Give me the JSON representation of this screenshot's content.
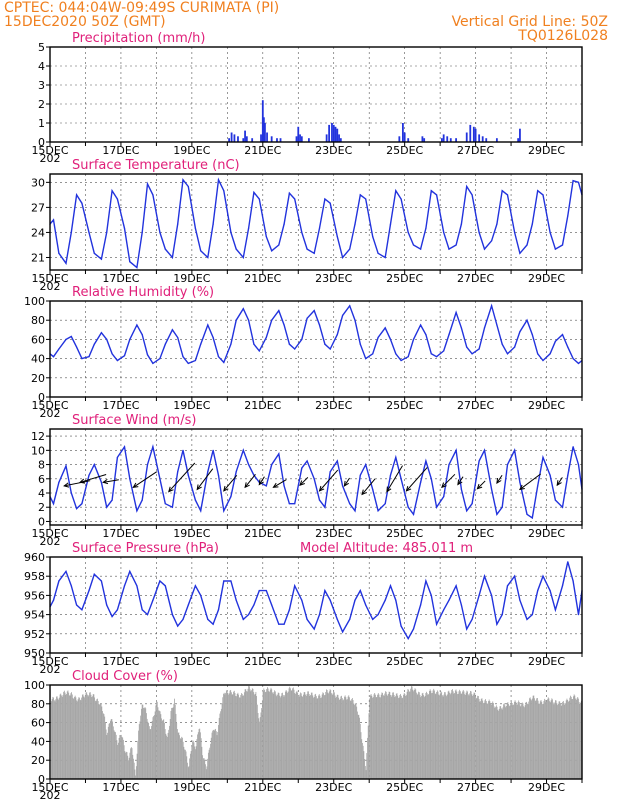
{
  "header": {
    "line1": "CPTEC:   044:04W-09:49S   CURIMATA (PI)",
    "line2": "15DEC2020 50Z (GMT)",
    "grid_note": "Vertical Grid Line: 50Z",
    "model_code": "TQ0126L028"
  },
  "colors": {
    "header": "#f08020",
    "title": "#e0207a",
    "line": "#2233dd",
    "cloud": "#a6a6a6"
  },
  "x_axis": {
    "labels": [
      "15DEC",
      "17DEC",
      "19DEC",
      "21DEC",
      "23DEC",
      "25DEC",
      "27DEC",
      "29DEC"
    ],
    "year_fragment": "202"
  },
  "chart_data": [
    {
      "id": "precip",
      "type": "bar",
      "title": "Precipitation (mm/h)",
      "ylim": [
        0,
        5
      ],
      "yticks": [
        0,
        1,
        2,
        3,
        4,
        5
      ],
      "xlim": [
        15,
        30
      ],
      "x": [
        20.05,
        20.12,
        20.2,
        20.3,
        20.45,
        20.5,
        20.55,
        20.7,
        20.95,
        21.0,
        21.03,
        21.06,
        21.12,
        21.25,
        21.4,
        21.5,
        21.95,
        22.0,
        22.05,
        22.1,
        22.3,
        22.8,
        22.87,
        22.95,
        23.0,
        23.05,
        23.1,
        23.15,
        23.2,
        24.85,
        24.95,
        25.0,
        25.1,
        25.5,
        25.55,
        26.05,
        26.1,
        26.2,
        26.3,
        26.45,
        26.75,
        26.85,
        26.95,
        27.0,
        27.1,
        27.2,
        27.3,
        27.6,
        28.2,
        28.25
      ],
      "values": [
        0.2,
        0.5,
        0.4,
        0.3,
        0.2,
        0.6,
        0.3,
        0.2,
        0.4,
        2.2,
        1.3,
        1.0,
        0.5,
        0.3,
        0.2,
        0.2,
        0.3,
        0.8,
        0.4,
        0.3,
        0.2,
        0.4,
        0.9,
        1.0,
        0.9,
        0.8,
        0.7,
        0.4,
        0.2,
        0.3,
        1.0,
        0.5,
        0.2,
        0.3,
        0.2,
        0.2,
        0.4,
        0.3,
        0.2,
        0.2,
        0.5,
        0.9,
        0.8,
        0.7,
        0.4,
        0.3,
        0.2,
        0.2,
        0.2,
        0.7
      ]
    },
    {
      "id": "temp",
      "type": "line",
      "title": "Surface Temperature (nC)",
      "ylim": [
        19.5,
        31
      ],
      "yticks": [
        21,
        24,
        27,
        30
      ],
      "xlim": [
        15,
        30
      ],
      "x": [
        15.0,
        15.1,
        15.25,
        15.45,
        15.6,
        15.75,
        15.9,
        16.1,
        16.25,
        16.45,
        16.6,
        16.75,
        16.9,
        17.1,
        17.25,
        17.45,
        17.6,
        17.75,
        17.9,
        18.1,
        18.25,
        18.45,
        18.6,
        18.75,
        18.9,
        19.1,
        19.25,
        19.45,
        19.6,
        19.75,
        19.9,
        20.1,
        20.25,
        20.45,
        20.6,
        20.75,
        20.9,
        21.1,
        21.25,
        21.45,
        21.6,
        21.75,
        21.9,
        22.1,
        22.25,
        22.45,
        22.6,
        22.75,
        22.9,
        23.1,
        23.25,
        23.45,
        23.6,
        23.75,
        23.9,
        24.1,
        24.25,
        24.45,
        24.6,
        24.75,
        24.9,
        25.1,
        25.25,
        25.45,
        25.6,
        25.75,
        25.9,
        26.1,
        26.25,
        26.45,
        26.6,
        26.75,
        26.9,
        27.1,
        27.25,
        27.45,
        27.6,
        27.75,
        27.9,
        28.1,
        28.25,
        28.45,
        28.6,
        28.75,
        28.9,
        29.1,
        29.25,
        29.45,
        29.6,
        29.75,
        29.9,
        30.0
      ],
      "values": [
        25.0,
        25.5,
        21.5,
        20.3,
        24.0,
        28.5,
        27.5,
        24.0,
        21.5,
        20.8,
        24.0,
        29.0,
        28.0,
        24.5,
        20.5,
        19.8,
        24.0,
        29.8,
        28.5,
        24.0,
        22.0,
        21.0,
        25.0,
        30.3,
        29.5,
        24.5,
        21.8,
        21.0,
        25.0,
        30.3,
        29.0,
        24.0,
        22.0,
        21.0,
        24.5,
        28.8,
        28.0,
        23.5,
        21.8,
        22.5,
        25.0,
        28.7,
        28.0,
        24.0,
        22.0,
        21.5,
        24.5,
        28.0,
        27.5,
        23.5,
        21.0,
        22.0,
        25.0,
        28.5,
        28.0,
        23.5,
        21.5,
        21.0,
        25.0,
        29.0,
        28.0,
        24.0,
        22.5,
        22.0,
        24.5,
        29.0,
        28.5,
        24.0,
        22.0,
        22.5,
        25.0,
        29.5,
        28.5,
        24.0,
        22.0,
        23.0,
        25.0,
        29.0,
        28.5,
        24.0,
        21.5,
        22.5,
        25.0,
        29.0,
        28.5,
        24.0,
        22.0,
        22.5,
        26.0,
        30.2,
        30.0,
        28.5
      ]
    },
    {
      "id": "rh",
      "type": "line",
      "title": "Relative Humidity (%)",
      "ylim": [
        0,
        100
      ],
      "yticks": [
        0,
        20,
        40,
        60,
        80,
        100
      ],
      "xlim": [
        15,
        30
      ],
      "x": [
        15.0,
        15.1,
        15.25,
        15.45,
        15.6,
        15.75,
        15.9,
        16.1,
        16.25,
        16.45,
        16.6,
        16.75,
        16.9,
        17.1,
        17.25,
        17.45,
        17.6,
        17.75,
        17.9,
        18.1,
        18.25,
        18.45,
        18.6,
        18.75,
        18.9,
        19.1,
        19.25,
        19.45,
        19.6,
        19.75,
        19.9,
        20.1,
        20.25,
        20.45,
        20.6,
        20.75,
        20.9,
        21.1,
        21.25,
        21.45,
        21.6,
        21.75,
        21.9,
        22.1,
        22.25,
        22.45,
        22.6,
        22.75,
        22.9,
        23.1,
        23.25,
        23.45,
        23.6,
        23.75,
        23.9,
        24.1,
        24.25,
        24.45,
        24.6,
        24.75,
        24.9,
        25.1,
        25.25,
        25.45,
        25.6,
        25.75,
        25.9,
        26.1,
        26.25,
        26.45,
        26.6,
        26.75,
        26.9,
        27.1,
        27.25,
        27.45,
        27.6,
        27.75,
        27.9,
        28.1,
        28.25,
        28.45,
        28.6,
        28.75,
        28.9,
        29.1,
        29.25,
        29.45,
        29.6,
        29.75,
        29.9,
        30.0
      ],
      "values": [
        45,
        42,
        50,
        60,
        63,
        52,
        40,
        42,
        55,
        67,
        60,
        45,
        38,
        43,
        60,
        75,
        65,
        44,
        35,
        40,
        55,
        70,
        62,
        42,
        35,
        38,
        55,
        75,
        62,
        42,
        36,
        55,
        80,
        92,
        80,
        55,
        48,
        62,
        80,
        90,
        75,
        55,
        50,
        60,
        82,
        90,
        75,
        55,
        50,
        65,
        85,
        95,
        80,
        55,
        40,
        45,
        62,
        72,
        60,
        45,
        38,
        42,
        60,
        75,
        65,
        45,
        42,
        48,
        65,
        88,
        72,
        52,
        45,
        50,
        72,
        95,
        75,
        55,
        45,
        52,
        68,
        80,
        65,
        45,
        38,
        45,
        58,
        65,
        52,
        40,
        35,
        38
      ]
    },
    {
      "id": "wind",
      "type": "line",
      "title": "Surface Wind (m/s)",
      "ylim": [
        -0.5,
        13
      ],
      "yticks": [
        0,
        2,
        4,
        6,
        8,
        10,
        12
      ],
      "xlim": [
        15,
        30
      ],
      "x": [
        15.0,
        15.1,
        15.25,
        15.45,
        15.6,
        15.75,
        15.9,
        16.1,
        16.25,
        16.45,
        16.6,
        16.75,
        16.9,
        17.1,
        17.25,
        17.45,
        17.6,
        17.75,
        17.9,
        18.1,
        18.25,
        18.45,
        18.6,
        18.75,
        18.9,
        19.1,
        19.25,
        19.45,
        19.6,
        19.75,
        19.9,
        20.1,
        20.25,
        20.45,
        20.6,
        20.75,
        20.9,
        21.1,
        21.25,
        21.45,
        21.6,
        21.75,
        21.9,
        22.1,
        22.25,
        22.45,
        22.6,
        22.75,
        22.9,
        23.1,
        23.25,
        23.45,
        23.6,
        23.75,
        23.9,
        24.1,
        24.25,
        24.45,
        24.6,
        24.75,
        24.9,
        25.1,
        25.25,
        25.45,
        25.6,
        25.75,
        25.9,
        26.1,
        26.25,
        26.45,
        26.6,
        26.75,
        26.9,
        27.1,
        27.25,
        27.45,
        27.6,
        27.75,
        27.9,
        28.1,
        28.25,
        28.45,
        28.6,
        28.75,
        28.9,
        29.1,
        29.25,
        29.45,
        29.6,
        29.75,
        29.9,
        30.0
      ],
      "values": [
        3.5,
        2.5,
        5.5,
        7.8,
        4.0,
        1.8,
        2.5,
        6.5,
        8.0,
        5.5,
        2.0,
        3.0,
        9.0,
        10.5,
        6.0,
        1.5,
        3.0,
        8.0,
        10.5,
        6.0,
        2.5,
        2.0,
        7.0,
        10.0,
        6.5,
        3.0,
        1.5,
        7.0,
        10.0,
        6.5,
        1.5,
        3.5,
        7.0,
        10.0,
        8.0,
        6.5,
        5.5,
        5.0,
        8.0,
        9.5,
        5.0,
        2.5,
        2.5,
        7.5,
        8.5,
        6.0,
        3.0,
        2.0,
        7.0,
        8.5,
        5.0,
        2.5,
        1.5,
        6.5,
        8.0,
        4.5,
        1.5,
        2.5,
        6.5,
        9.0,
        6.0,
        2.0,
        1.0,
        5.5,
        8.5,
        6.0,
        2.0,
        3.5,
        8.0,
        10.0,
        4.5,
        1.5,
        2.5,
        8.5,
        10.0,
        4.5,
        1.0,
        2.0,
        8.0,
        10.0,
        5.5,
        1.0,
        0.5,
        5.0,
        9.0,
        6.5,
        3.0,
        2.0,
        6.5,
        10.5,
        8.0,
        4.5
      ],
      "vectors": [
        {
          "x": 15.4,
          "y": 5.0,
          "u": 1.0,
          "v": 0.2
        },
        {
          "x": 15.85,
          "y": 5.5,
          "u": 1.0,
          "v": 0.3
        },
        {
          "x": 16.5,
          "y": 5.5,
          "u": 0.6,
          "v": 0.1
        },
        {
          "x": 17.35,
          "y": 4.8,
          "u": 0.9,
          "v": 0.6
        },
        {
          "x": 18.35,
          "y": 4.2,
          "u": 1.0,
          "v": 1.1
        },
        {
          "x": 19.15,
          "y": 4.5,
          "u": 0.6,
          "v": 0.8
        },
        {
          "x": 19.9,
          "y": 4.3,
          "u": 0.5,
          "v": 0.6
        },
        {
          "x": 20.5,
          "y": 4.8,
          "u": 0.4,
          "v": 0.5
        },
        {
          "x": 20.9,
          "y": 5.2,
          "u": 0.2,
          "v": 0.3
        },
        {
          "x": 21.3,
          "y": 4.8,
          "u": 0.5,
          "v": 0.3
        },
        {
          "x": 22.05,
          "y": 5.1,
          "u": 0.3,
          "v": 0.3
        },
        {
          "x": 22.6,
          "y": 4.3,
          "u": 0.7,
          "v": 0.8
        },
        {
          "x": 23.3,
          "y": 5.0,
          "u": 0.2,
          "v": 0.3
        },
        {
          "x": 23.8,
          "y": 3.8,
          "u": 0.5,
          "v": 0.6
        },
        {
          "x": 24.5,
          "y": 4.2,
          "u": 0.6,
          "v": 1.0
        },
        {
          "x": 25.05,
          "y": 4.3,
          "u": 0.8,
          "v": 0.9
        },
        {
          "x": 26.05,
          "y": 4.8,
          "u": 0.5,
          "v": 0.5
        },
        {
          "x": 26.5,
          "y": 5.2,
          "u": 0.2,
          "v": 0.3
        },
        {
          "x": 27.05,
          "y": 4.6,
          "u": 0.3,
          "v": 0.3
        },
        {
          "x": 27.6,
          "y": 5.4,
          "u": 0.2,
          "v": 0.3
        },
        {
          "x": 28.25,
          "y": 4.5,
          "u": 0.8,
          "v": 0.6
        },
        {
          "x": 29.3,
          "y": 5.1,
          "u": 0.2,
          "v": 0.3
        }
      ]
    },
    {
      "id": "pres",
      "type": "line",
      "title": "Surface Pressure (hPa)",
      "annotation": "Model Altitude: 485.011 m",
      "ylim": [
        950,
        960
      ],
      "yticks": [
        950,
        952,
        954,
        956,
        958,
        960
      ],
      "xlim": [
        15,
        30
      ],
      "x": [
        15.0,
        15.1,
        15.25,
        15.45,
        15.6,
        15.75,
        15.9,
        16.1,
        16.25,
        16.45,
        16.6,
        16.75,
        16.9,
        17.1,
        17.25,
        17.45,
        17.6,
        17.75,
        17.9,
        18.1,
        18.25,
        18.45,
        18.6,
        18.75,
        18.9,
        19.1,
        19.25,
        19.45,
        19.6,
        19.75,
        19.9,
        20.1,
        20.25,
        20.45,
        20.6,
        20.75,
        20.9,
        21.1,
        21.25,
        21.45,
        21.6,
        21.75,
        21.9,
        22.1,
        22.25,
        22.45,
        22.6,
        22.75,
        22.9,
        23.1,
        23.25,
        23.45,
        23.6,
        23.75,
        23.9,
        24.1,
        24.25,
        24.45,
        24.6,
        24.75,
        24.9,
        25.1,
        25.25,
        25.45,
        25.6,
        25.75,
        25.9,
        26.1,
        26.25,
        26.45,
        26.6,
        26.75,
        26.9,
        27.1,
        27.25,
        27.45,
        27.6,
        27.75,
        27.9,
        28.1,
        28.25,
        28.45,
        28.6,
        28.75,
        28.9,
        29.1,
        29.25,
        29.45,
        29.6,
        29.75,
        29.9,
        30.0
      ],
      "values": [
        954.8,
        955.5,
        957.5,
        958.5,
        957.0,
        955.0,
        954.5,
        956.5,
        958.2,
        957.5,
        955.0,
        953.8,
        954.5,
        957.0,
        958.5,
        957.0,
        954.5,
        954.0,
        955.5,
        957.5,
        957.0,
        954.0,
        952.8,
        953.5,
        955.0,
        957.0,
        956.0,
        953.5,
        953.0,
        954.5,
        957.5,
        957.5,
        955.5,
        953.5,
        954.0,
        955.0,
        956.5,
        956.5,
        955.0,
        953.0,
        953.0,
        954.5,
        957.0,
        955.5,
        953.5,
        952.5,
        954.0,
        956.5,
        955.5,
        953.5,
        952.2,
        953.5,
        955.5,
        956.5,
        955.0,
        953.5,
        954.0,
        955.5,
        957.0,
        955.5,
        952.8,
        951.5,
        952.5,
        955.0,
        957.5,
        956.0,
        953.0,
        954.5,
        955.5,
        957.0,
        955.0,
        952.5,
        953.5,
        956.0,
        958.0,
        956.0,
        953.0,
        954.0,
        957.0,
        958.0,
        955.5,
        953.5,
        954.0,
        956.5,
        958.0,
        956.5,
        954.5,
        957.0,
        959.5,
        957.5,
        954.0,
        956.5
      ]
    },
    {
      "id": "cloud",
      "type": "area",
      "title": "Cloud Cover (%)",
      "ylim": [
        0,
        100
      ],
      "yticks": [
        0,
        20,
        40,
        60,
        80,
        100
      ],
      "xlim": [
        15,
        30
      ],
      "x": [
        15.0,
        15.2,
        15.4,
        15.6,
        15.8,
        16.0,
        16.2,
        16.4,
        16.5,
        16.6,
        16.7,
        16.8,
        16.9,
        17.0,
        17.1,
        17.2,
        17.3,
        17.4,
        17.5,
        17.6,
        17.7,
        17.8,
        17.9,
        18.0,
        18.1,
        18.2,
        18.3,
        18.4,
        18.5,
        18.6,
        18.7,
        18.8,
        18.9,
        19.0,
        19.1,
        19.2,
        19.3,
        19.4,
        19.5,
        19.6,
        19.7,
        19.8,
        19.9,
        20.0,
        20.2,
        20.4,
        20.6,
        20.8,
        20.9,
        21.0,
        21.2,
        21.4,
        21.6,
        21.8,
        22.0,
        22.2,
        22.4,
        22.6,
        22.8,
        23.0,
        23.2,
        23.4,
        23.6,
        23.7,
        23.8,
        23.9,
        24.0,
        24.2,
        24.4,
        24.6,
        24.8,
        25.0,
        25.2,
        25.4,
        25.6,
        25.8,
        26.0,
        26.2,
        26.4,
        26.6,
        26.8,
        27.0,
        27.2,
        27.4,
        27.6,
        27.8,
        28.0,
        28.2,
        28.4,
        28.6,
        28.8,
        29.0,
        29.2,
        29.4,
        29.6,
        29.8,
        30.0
      ],
      "values": [
        85,
        88,
        90,
        90,
        86,
        88,
        90,
        82,
        70,
        45,
        65,
        55,
        40,
        50,
        30,
        20,
        35,
        5,
        60,
        80,
        70,
        50,
        65,
        85,
        70,
        60,
        40,
        70,
        85,
        50,
        45,
        30,
        10,
        40,
        35,
        60,
        25,
        10,
        35,
        55,
        50,
        75,
        92,
        90,
        92,
        90,
        95,
        92,
        60,
        94,
        93,
        92,
        90,
        95,
        92,
        90,
        88,
        90,
        92,
        90,
        88,
        85,
        80,
        70,
        40,
        10,
        85,
        90,
        92,
        88,
        90,
        90,
        95,
        92,
        90,
        92,
        93,
        90,
        92,
        95,
        90,
        88,
        85,
        80,
        75,
        80,
        78,
        82,
        80,
        85,
        83,
        85,
        80,
        82,
        84,
        86,
        82
      ]
    }
  ]
}
